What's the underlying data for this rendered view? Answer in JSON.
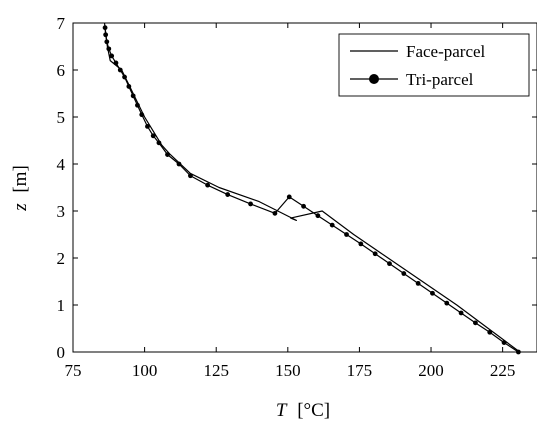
{
  "chart_data": {
    "type": "line",
    "xlabel_var": "T",
    "xlabel_unit": "[°C]",
    "ylabel_var": "z",
    "ylabel_unit": "[m]",
    "xlim": [
      75,
      237
    ],
    "ylim": [
      0,
      7
    ],
    "xticks": [
      75,
      100,
      125,
      150,
      175,
      200,
      225
    ],
    "yticks": [
      0,
      1,
      2,
      3,
      4,
      5,
      6,
      7
    ],
    "grid": false,
    "legend_position": "top-right",
    "series": [
      {
        "name": "Face-parcel",
        "marker": "none",
        "color": "#000000",
        "points": [
          [
            231,
            0
          ],
          [
            220,
            0.5
          ],
          [
            209,
            1.0
          ],
          [
            197,
            1.5
          ],
          [
            185,
            2.0
          ],
          [
            173,
            2.5
          ],
          [
            162,
            3.0
          ],
          [
            151,
            2.85
          ],
          [
            153,
            2.8
          ],
          [
            140,
            3.2
          ],
          [
            126,
            3.5
          ],
          [
            116,
            3.8
          ],
          [
            109,
            4.2
          ],
          [
            106,
            4.4
          ],
          [
            103,
            4.7
          ],
          [
            100,
            5.0
          ],
          [
            96,
            5.5
          ],
          [
            92,
            6.0
          ],
          [
            88,
            6.2
          ],
          [
            87,
            6.5
          ],
          [
            86,
            7.0
          ]
        ]
      },
      {
        "name": "Tri-parcel",
        "marker": "circle",
        "color": "#000000",
        "points": [
          [
            230.5,
            0
          ],
          [
            225.5,
            0.2
          ],
          [
            220.5,
            0.42
          ],
          [
            215.5,
            0.62
          ],
          [
            210.5,
            0.83
          ],
          [
            205.5,
            1.04
          ],
          [
            200.5,
            1.25
          ],
          [
            195.5,
            1.46
          ],
          [
            190.5,
            1.67
          ],
          [
            185.5,
            1.88
          ],
          [
            180.5,
            2.09
          ],
          [
            175.5,
            2.3
          ],
          [
            170.5,
            2.5
          ],
          [
            165.5,
            2.7
          ],
          [
            160.5,
            2.9
          ],
          [
            155.5,
            3.1
          ],
          [
            150.5,
            3.3
          ],
          [
            145.5,
            2.95
          ],
          [
            137,
            3.15
          ],
          [
            129,
            3.35
          ],
          [
            122,
            3.55
          ],
          [
            116,
            3.75
          ],
          [
            112,
            4.0
          ],
          [
            108,
            4.2
          ],
          [
            105,
            4.45
          ],
          [
            103,
            4.6
          ],
          [
            101,
            4.8
          ],
          [
            99,
            5.05
          ],
          [
            97.5,
            5.25
          ],
          [
            96,
            5.45
          ],
          [
            94.5,
            5.65
          ],
          [
            93,
            5.85
          ],
          [
            91.5,
            6.0
          ],
          [
            90,
            6.15
          ],
          [
            88.5,
            6.3
          ],
          [
            87.5,
            6.45
          ],
          [
            86.8,
            6.6
          ],
          [
            86.4,
            6.75
          ],
          [
            86.2,
            6.9
          ]
        ]
      }
    ]
  }
}
